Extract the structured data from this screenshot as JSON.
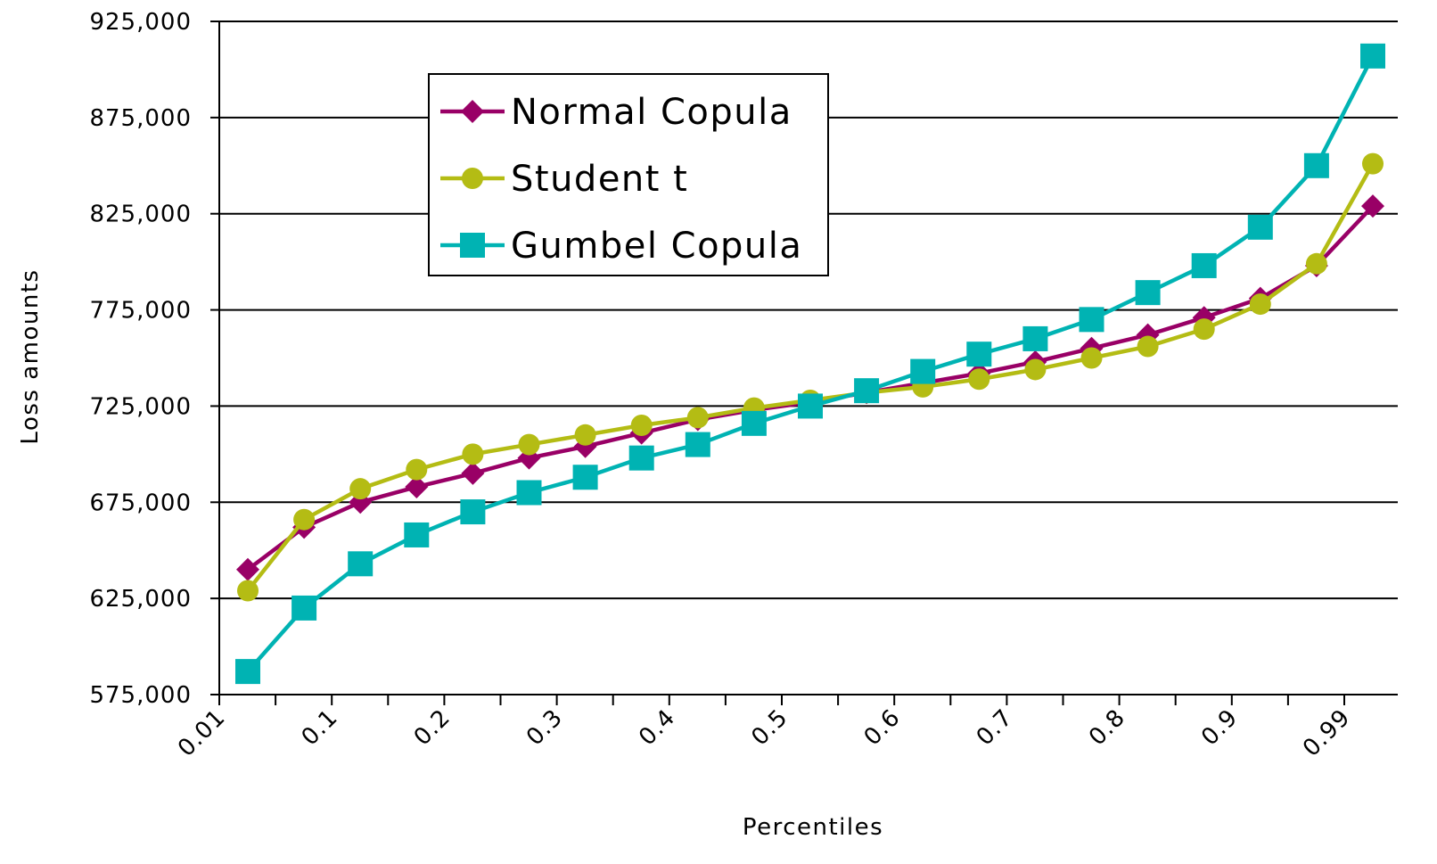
{
  "chart_data": {
    "type": "line",
    "xlabel": "Percentiles",
    "ylabel": "Loss amounts",
    "ylim": [
      575000,
      925000
    ],
    "y_ticks": [
      575000,
      625000,
      675000,
      725000,
      775000,
      825000,
      875000,
      925000
    ],
    "y_tick_labels": [
      "575,000",
      "625,000",
      "675,000",
      "725,000",
      "775,000",
      "825,000",
      "875,000",
      "925,000"
    ],
    "x_tick_labels": [
      "0.01",
      "0.1",
      "0.2",
      "0.3",
      "0.4",
      "0.5",
      "0.6",
      "0.7",
      "0.8",
      "0.9",
      "0.99"
    ],
    "categories_count": 21,
    "grid": true,
    "legend_position": "top-left",
    "series": [
      {
        "name": "Normal Copula",
        "color": "#990066",
        "marker": "diamond",
        "values": [
          640000,
          662000,
          675000,
          683000,
          690000,
          698000,
          704000,
          711000,
          718000,
          723000,
          727000,
          732000,
          737000,
          742000,
          748000,
          755000,
          762000,
          771000,
          781000,
          798000,
          829000
        ]
      },
      {
        "name": "Student t",
        "color": "#b4bc14",
        "marker": "circle",
        "values": [
          629000,
          666000,
          682000,
          692000,
          700000,
          705000,
          710000,
          715000,
          719000,
          724000,
          728000,
          732000,
          735000,
          739000,
          744000,
          750000,
          756000,
          765000,
          778000,
          799000,
          851000
        ]
      },
      {
        "name": "Gumbel Copula",
        "color": "#00b3b3",
        "marker": "square",
        "values": [
          587000,
          620000,
          643000,
          658000,
          670000,
          680000,
          688000,
          698000,
          705000,
          716000,
          725000,
          733000,
          743000,
          752000,
          760000,
          770000,
          784000,
          798000,
          818000,
          850000,
          907000
        ]
      }
    ]
  }
}
